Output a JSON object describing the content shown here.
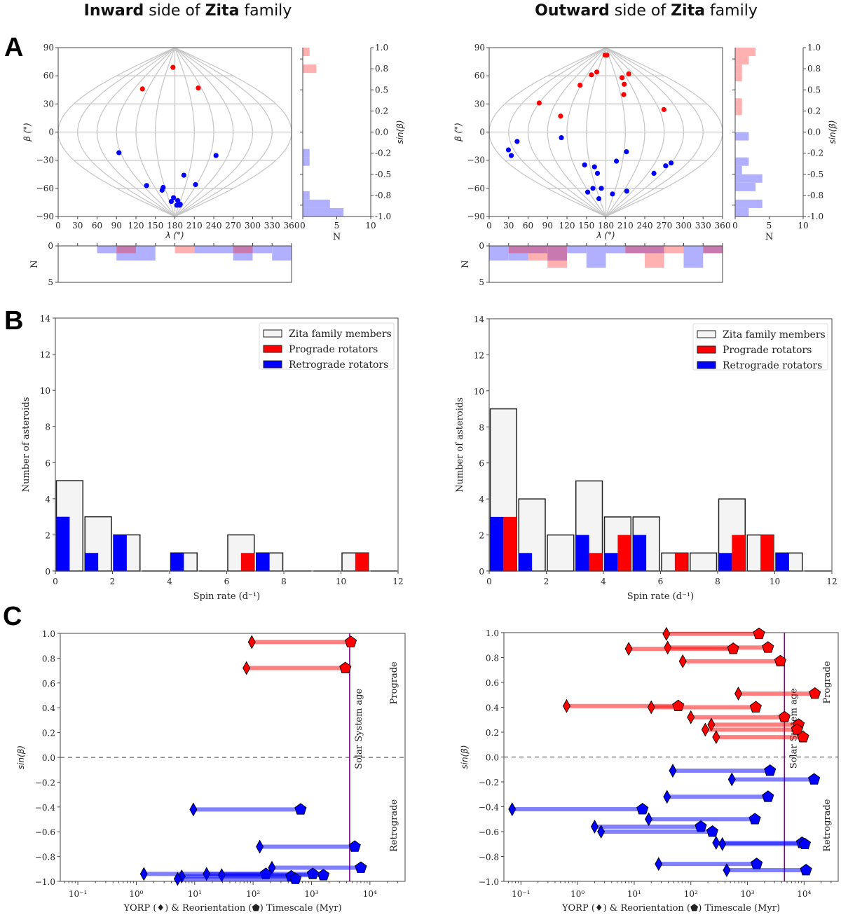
{
  "titles": {
    "left": {
      "bold1": "Inward",
      "rest1": " side of ",
      "bold2": "Zita",
      "rest2": " family"
    },
    "right": {
      "bold1": "Outward",
      "rest1": " side of ",
      "bold2": "Zita",
      "rest2": " family"
    }
  },
  "panel_letters": {
    "a": "A",
    "b": "B",
    "c": "C"
  },
  "colors": {
    "prograde": "#ff0000",
    "retrograde": "#0000ff",
    "prograde_hist": "#ffb0b0",
    "retrograde_hist": "#b0b0ff",
    "overlap_hist": "#c87ab0",
    "family_bar": "#f4f4f4",
    "solar_line": "#800080",
    "grid": "#c8c8c8"
  },
  "chart_data": [
    {
      "id": "A-left-map",
      "type": "scatter",
      "title": "Inward side of Zita family",
      "xlabel": "λ (°)",
      "ylabel": "β (°)",
      "xlim": [
        0,
        360
      ],
      "ylim": [
        -90,
        90
      ],
      "xticks": [
        "0",
        "30",
        "60",
        "90",
        "120",
        "150",
        "180",
        "210",
        "240",
        "270",
        "300",
        "330",
        "360"
      ],
      "yticks": [
        "−90",
        "−60",
        "−30",
        "0",
        "30",
        "60",
        "90"
      ],
      "projection": "sinusoidal",
      "prograde": [
        [
          108,
          46
        ],
        [
          172,
          69
        ],
        [
          233,
          47
        ]
      ],
      "retrograde": [
        [
          87,
          -22
        ],
        [
          100,
          -57
        ],
        [
          138,
          -62
        ],
        [
          145,
          -59
        ],
        [
          160,
          -74
        ],
        [
          174,
          -70
        ],
        [
          195,
          -73
        ],
        [
          194,
          -78
        ],
        [
          200,
          -46
        ],
        [
          215,
          -78
        ],
        [
          217,
          -77
        ],
        [
          237,
          -56
        ],
        [
          250,
          -25
        ]
      ]
    },
    {
      "id": "A-left-sinb-hist",
      "type": "bar",
      "orientation": "horizontal",
      "xlabel": "N",
      "ylabel": "sin(β)",
      "xlim": [
        0,
        10
      ],
      "ylim": [
        -1,
        1
      ],
      "xticks": [
        "0",
        "5",
        "10"
      ],
      "yticks": [
        "1.0",
        "0.8",
        "0.5",
        "0.2",
        "0.0",
        "-0.2",
        "-0.5",
        "-0.8",
        "-1.0"
      ],
      "bin_edges": [
        -1.0,
        -0.9,
        -0.8,
        -0.7,
        -0.6,
        -0.5,
        -0.4,
        -0.3,
        -0.2,
        -0.1,
        0.0,
        0.1,
        0.2,
        0.3,
        0.4,
        0.5,
        0.6,
        0.7,
        0.8,
        0.9,
        1.0
      ],
      "prograde_counts": [
        0,
        0,
        0,
        0,
        0,
        0,
        0,
        0,
        0,
        0,
        0,
        0,
        0,
        0,
        0,
        0,
        0,
        2,
        0,
        1
      ],
      "retrograde_counts": [
        6,
        4,
        1,
        0,
        0,
        0,
        1,
        1,
        0,
        0,
        0,
        0,
        0,
        0,
        0,
        0,
        0,
        0,
        0,
        0
      ]
    },
    {
      "id": "A-left-lambda-hist",
      "type": "bar",
      "xlabel": "λ (°)",
      "ylabel": "N",
      "ylim": [
        0,
        5
      ],
      "yticks": [
        "0",
        "5"
      ],
      "inverted": true,
      "bin_edges": [
        0,
        30,
        60,
        90,
        120,
        150,
        180,
        210,
        240,
        270,
        300,
        330,
        360
      ],
      "prograde_counts": [
        0,
        0,
        0,
        1,
        0,
        0,
        1,
        0,
        0,
        1,
        0,
        0
      ],
      "retrograde_counts": [
        0,
        0,
        1,
        2,
        2,
        0,
        0,
        1,
        1,
        2,
        1,
        2
      ]
    },
    {
      "id": "A-right-map",
      "type": "scatter",
      "title": "Outward side of Zita family",
      "xlabel": "λ (°)",
      "ylabel": "β (°)",
      "xlim": [
        0,
        360
      ],
      "ylim": [
        -90,
        90
      ],
      "xticks": [
        "0",
        "30",
        "60",
        "90",
        "120",
        "150",
        "180",
        "210",
        "240",
        "270",
        "300",
        "330",
        "360"
      ],
      "yticks": [
        "−90",
        "−60",
        "−30",
        "0",
        "30",
        "60",
        "90"
      ],
      "projection": "sinusoidal",
      "prograde": [
        [
          60,
          31
        ],
        [
          107,
          17
        ],
        [
          118,
          50
        ],
        [
          134,
          61
        ],
        [
          148,
          64
        ],
        [
          172,
          82
        ],
        [
          191,
          82
        ],
        [
          216,
          40
        ],
        [
          225,
          51
        ],
        [
          227,
          58
        ],
        [
          255,
          62
        ],
        [
          278,
          24
        ]
      ],
      "retrograde": [
        [
          19,
          -25
        ],
        [
          21,
          -19
        ],
        [
          41,
          -10
        ],
        [
          111,
          -6
        ],
        [
          116,
          -64
        ],
        [
          140,
          -35
        ],
        [
          140,
          -60
        ],
        [
          147,
          -71
        ],
        [
          158,
          -37
        ],
        [
          162,
          -44
        ],
        [
          166,
          -60
        ],
        [
          199,
          -31
        ],
        [
          205,
          -66
        ],
        [
          214,
          -21
        ],
        [
          251,
          -63
        ],
        [
          283,
          -44
        ],
        [
          294,
          -36
        ],
        [
          300,
          -33
        ]
      ]
    },
    {
      "id": "A-right-sinb-hist",
      "type": "bar",
      "orientation": "horizontal",
      "xlabel": "N",
      "ylabel": "sin(β)",
      "xlim": [
        0,
        10
      ],
      "ylim": [
        -1,
        1
      ],
      "xticks": [
        "0",
        "5",
        "10"
      ],
      "yticks": [
        "1.0",
        "0.8",
        "0.5",
        "0.2",
        "0.0",
        "-0.2",
        "-0.5",
        "-0.8",
        "-1.0"
      ],
      "bin_edges": [
        -1.0,
        -0.9,
        -0.8,
        -0.7,
        -0.6,
        -0.5,
        -0.4,
        -0.3,
        -0.2,
        -0.1,
        0.0,
        0.1,
        0.2,
        0.3,
        0.4,
        0.5,
        0.6,
        0.7,
        0.8,
        0.9,
        1.0
      ],
      "prograde_counts": [
        0,
        0,
        0,
        0,
        0,
        0,
        0,
        0,
        0,
        0,
        0,
        0,
        1,
        1,
        0,
        0,
        1,
        1,
        2,
        3
      ],
      "retrograde_counts": [
        2,
        4,
        0,
        3,
        4,
        1,
        2,
        0,
        0,
        2,
        0,
        0,
        0,
        0,
        0,
        0,
        0,
        0,
        0,
        0
      ]
    },
    {
      "id": "A-right-lambda-hist",
      "type": "bar",
      "xlabel": "λ (°)",
      "ylabel": "N",
      "ylim": [
        0,
        5
      ],
      "yticks": [
        "0",
        "5"
      ],
      "inverted": true,
      "bin_edges": [
        0,
        30,
        60,
        90,
        120,
        150,
        180,
        210,
        240,
        270,
        300,
        330,
        360
      ],
      "prograde_counts": [
        0,
        1,
        2,
        3,
        0,
        0,
        0,
        1,
        3,
        1,
        0,
        1
      ],
      "retrograde_counts": [
        2,
        2,
        1,
        2,
        1,
        3,
        1,
        1,
        1,
        0,
        3,
        1
      ]
    },
    {
      "id": "B-left",
      "type": "bar",
      "xlabel": "Spin rate (d⁻¹)",
      "ylabel": "Number of asteroids",
      "xlim": [
        0,
        12
      ],
      "ylim": [
        0,
        14
      ],
      "xticks": [
        "0",
        "2",
        "4",
        "6",
        "8",
        "10",
        "12"
      ],
      "yticks": [
        "0",
        "2",
        "4",
        "6",
        "8",
        "10",
        "12",
        "14"
      ],
      "legend": [
        "Zita family members",
        "Prograde rotators",
        "Retrograde rotators"
      ],
      "legend_position": "upper-right",
      "bin_edges": [
        0,
        1,
        2,
        3,
        4,
        5,
        6,
        7,
        8,
        9,
        10,
        11,
        12
      ],
      "series": [
        {
          "name": "Zita family members",
          "values": [
            5,
            3,
            2,
            0,
            1,
            0,
            2,
            1,
            0,
            0,
            1,
            0
          ]
        },
        {
          "name": "Retrograde rotators",
          "values": [
            3,
            1,
            2,
            0,
            1,
            0,
            0,
            1,
            0,
            0,
            0,
            0
          ]
        },
        {
          "name": "Prograde rotators",
          "values": [
            0,
            0,
            0,
            0,
            0,
            0,
            1,
            0,
            0,
            0,
            1,
            0
          ]
        }
      ]
    },
    {
      "id": "B-right",
      "type": "bar",
      "xlabel": "Spin rate (d⁻¹)",
      "ylabel": "Number of asteroids",
      "xlim": [
        0,
        12
      ],
      "ylim": [
        0,
        14
      ],
      "xticks": [
        "0",
        "2",
        "4",
        "6",
        "8",
        "10",
        "12"
      ],
      "yticks": [
        "0",
        "2",
        "4",
        "6",
        "8",
        "10",
        "12",
        "14"
      ],
      "legend": [
        "Zita family members",
        "Prograde rotators",
        "Retrograde rotators"
      ],
      "legend_position": "upper-right",
      "bin_edges": [
        0,
        1,
        2,
        3,
        4,
        5,
        6,
        7,
        8,
        9,
        10,
        11,
        12
      ],
      "series": [
        {
          "name": "Zita family members",
          "values": [
            9,
            4,
            2,
            5,
            3,
            3,
            1,
            1,
            4,
            2,
            1,
            0
          ]
        },
        {
          "name": "Retrograde rotators",
          "values": [
            3,
            1,
            0,
            2,
            1,
            2,
            0,
            0,
            1,
            0,
            1,
            0
          ]
        },
        {
          "name": "Prograde rotators",
          "values": [
            3,
            0,
            0,
            1,
            2,
            0,
            1,
            0,
            2,
            2,
            0,
            0
          ]
        }
      ]
    },
    {
      "id": "C-left",
      "type": "scatter",
      "xlabel": "YORP (♦) & Reorientation (⬟) Timescale (Myr)",
      "ylabel": "sin(β)",
      "xscale": "log",
      "xlim": [
        0.05,
        40000
      ],
      "ylim": [
        -1.0,
        1.0
      ],
      "xticks": [
        "10⁻¹",
        "10⁰",
        "10¹",
        "10²",
        "10³",
        "10⁴"
      ],
      "yticks": [
        "1.0",
        "0.8",
        "0.6",
        "0.4",
        "0.2",
        "0.0",
        "−0.2",
        "−0.4",
        "−0.6",
        "−0.8",
        "−1.0"
      ],
      "solar_system_age_myr": 4500,
      "annotations": {
        "solar": "Solar System age",
        "prograde": "Prograde",
        "retrograde": "Retrograde"
      },
      "segments": [
        {
          "sinb": 0.93,
          "yorp": 95,
          "reorient": 4700
        },
        {
          "sinb": 0.72,
          "yorp": 77,
          "reorient": 3800
        },
        {
          "sinb": -0.42,
          "yorp": 9.5,
          "reorient": 650
        },
        {
          "sinb": -0.72,
          "yorp": 130,
          "reorient": 5500
        },
        {
          "sinb": -0.89,
          "yorp": 210,
          "reorient": 7000
        },
        {
          "sinb": -0.94,
          "yorp": 1.35,
          "reorient": 165
        },
        {
          "sinb": -0.94,
          "yorp": 16,
          "reorient": 1050
        },
        {
          "sinb": -0.95,
          "yorp": 29,
          "reorient": 1600
        },
        {
          "sinb": -0.96,
          "yorp": 6,
          "reorient": 450
        },
        {
          "sinb": -0.98,
          "yorp": 5.1,
          "reorient": 530
        }
      ]
    },
    {
      "id": "C-right",
      "type": "scatter",
      "xlabel": "YORP (♦) & Reorientation (⬟) Timescale (Myr)",
      "ylabel": "sin(β)",
      "xscale": "log",
      "xlim": [
        0.05,
        40000
      ],
      "ylim": [
        -1.0,
        1.0
      ],
      "xticks": [
        "10⁻¹",
        "10⁰",
        "10¹",
        "10²",
        "10³",
        "10⁴"
      ],
      "yticks": [
        "1.0",
        "0.8",
        "0.6",
        "0.4",
        "0.2",
        "0.0",
        "−0.2",
        "−0.4",
        "−0.6",
        "−0.8",
        "−1.0"
      ],
      "solar_system_age_myr": 4500,
      "annotations": {
        "solar": "Solar System age",
        "prograde": "Prograde",
        "retrograde": "Retrograde"
      },
      "segments": [
        {
          "sinb": 0.99,
          "yorp": 37,
          "reorient": 1600
        },
        {
          "sinb": 0.88,
          "yorp": 39,
          "reorient": 2300
        },
        {
          "sinb": 0.87,
          "yorp": 8,
          "reorient": 560
        },
        {
          "sinb": 0.77,
          "yorp": 72,
          "reorient": 3800
        },
        {
          "sinb": 0.51,
          "yorp": 690,
          "reorient": 15500
        },
        {
          "sinb": 0.41,
          "yorp": 0.64,
          "reorient": 60
        },
        {
          "sinb": 0.4,
          "yorp": 20,
          "reorient": 1400
        },
        {
          "sinb": 0.32,
          "yorp": 100,
          "reorient": 4500
        },
        {
          "sinb": 0.26,
          "yorp": 230,
          "reorient": 8000
        },
        {
          "sinb": 0.22,
          "yorp": 180,
          "reorient": 7500
        },
        {
          "sinb": 0.16,
          "yorp": 280,
          "reorient": 9600
        },
        {
          "sinb": -0.11,
          "yorp": 48,
          "reorient": 2500
        },
        {
          "sinb": -0.18,
          "yorp": 530,
          "reorient": 15000
        },
        {
          "sinb": -0.32,
          "yorp": 38,
          "reorient": 2300
        },
        {
          "sinb": -0.42,
          "yorp": 0.07,
          "reorient": 14
        },
        {
          "sinb": -0.5,
          "yorp": 18,
          "reorient": 1350
        },
        {
          "sinb": -0.56,
          "yorp": 2.0,
          "reorient": 150
        },
        {
          "sinb": -0.6,
          "yorp": 2.6,
          "reorient": 240
        },
        {
          "sinb": -0.69,
          "yorp": 280,
          "reorient": 9200
        },
        {
          "sinb": -0.7,
          "yorp": 360,
          "reorient": 10300
        },
        {
          "sinb": -0.86,
          "yorp": 27,
          "reorient": 1450
        },
        {
          "sinb": -0.91,
          "yorp": 430,
          "reorient": 10800
        }
      ]
    }
  ]
}
